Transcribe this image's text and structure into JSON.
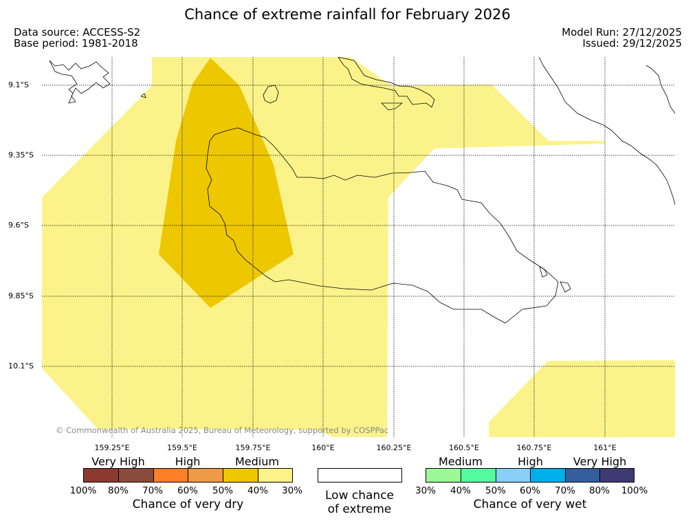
{
  "title": "Chance of extreme rainfall for February 2026",
  "meta": {
    "data_source": "Data source: ACCESS-S2",
    "base_period": "Base period: 1981-2018",
    "model_run": "Model Run: 27/12/2025",
    "issued": "Issued: 29/12/2025"
  },
  "map": {
    "lat_labels": [
      "9.1°S",
      "9.35°S",
      "9.6°S",
      "9.85°S",
      "10.1°S"
    ],
    "lon_labels": [
      "159.25°E",
      "159.5°E",
      "159.75°E",
      "160°E",
      "160.25°E",
      "160.5°E",
      "160.75°E",
      "161°E"
    ],
    "copyright": "© Commonwealth of Australia 2025, Bureau of Meteorology, supported by COSPPac",
    "colors": {
      "medium_dry": "#fbf38a",
      "high_dry": "#edc700",
      "coast": "#000000"
    }
  },
  "legend": {
    "dry": {
      "categories": [
        "Very High",
        "High",
        "Medium"
      ],
      "colors": [
        "#8c3a30",
        "#8a4c3c",
        "#ff7f27",
        "#ee9a48",
        "#edc700",
        "#fbf38a"
      ],
      "ticks": [
        "100%",
        "80%",
        "70%",
        "60%",
        "50%",
        "40%",
        "30%"
      ],
      "caption": "Chance of very dry"
    },
    "low": {
      "line1": "Low chance",
      "line2": "of extreme"
    },
    "wet": {
      "categories": [
        "Medium",
        "High",
        "Very High"
      ],
      "colors": [
        "#9bfa96",
        "#56fb9f",
        "#8acff8",
        "#00aeec",
        "#345e9c",
        "#3f3a72"
      ],
      "ticks": [
        "30%",
        "40%",
        "50%",
        "60%",
        "70%",
        "80%",
        "100%"
      ],
      "caption": "Chance of very wet"
    }
  }
}
